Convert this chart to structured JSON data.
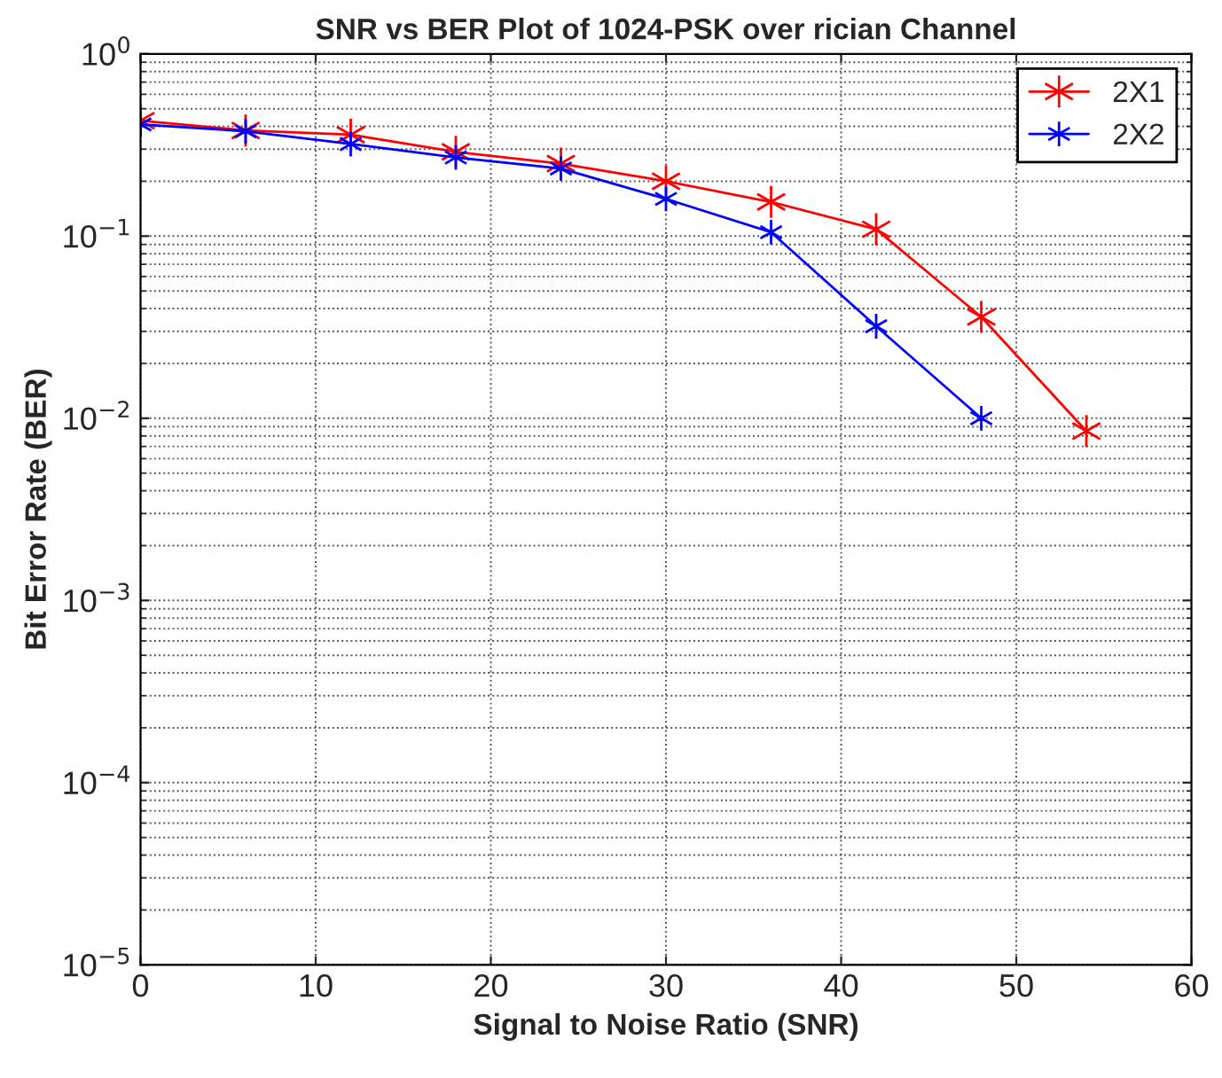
{
  "chart_data": {
    "type": "line",
    "title": "SNR vs BER Plot of 1024-PSK over rician Channel",
    "xlabel": "Signal to Noise Ratio (SNR)",
    "ylabel": "Bit Error Rate (BER)",
    "x": [
      0,
      6,
      12,
      18,
      24,
      30,
      36,
      42,
      48,
      54
    ],
    "series": [
      {
        "name": "2X1",
        "color": "#ff0000",
        "values": [
          0.43,
          0.38,
          0.36,
          0.29,
          0.25,
          0.2,
          0.154,
          0.109,
          0.036,
          0.0085
        ]
      },
      {
        "name": "2X2",
        "color": "#0000ff",
        "x": [
          0,
          6,
          12,
          18,
          24,
          30,
          36,
          42,
          48
        ],
        "values": [
          0.41,
          0.376,
          0.32,
          0.27,
          0.235,
          0.16,
          0.105,
          0.032,
          0.01
        ]
      }
    ],
    "log": "y",
    "xlim": [
      0,
      60
    ],
    "ylim": [
      1e-05,
      1
    ],
    "xticks": [
      0,
      10,
      20,
      30,
      40,
      50,
      60
    ],
    "yticks": [
      {
        "value": 1e-05,
        "label": "10$^{−5}$"
      },
      {
        "value": 0.0001,
        "label": "10$^{−4}$"
      },
      {
        "value": 0.001,
        "label": "10$^{−3}$"
      },
      {
        "value": 0.01,
        "label": "10$^{−2}$"
      },
      {
        "value": 0.1,
        "label": "10$^{−1}$"
      },
      {
        "value": 1,
        "label": "10$^{0}$"
      }
    ],
    "grid": true,
    "legend": "top right",
    "marker": "cross",
    "line_style": "solid"
  }
}
